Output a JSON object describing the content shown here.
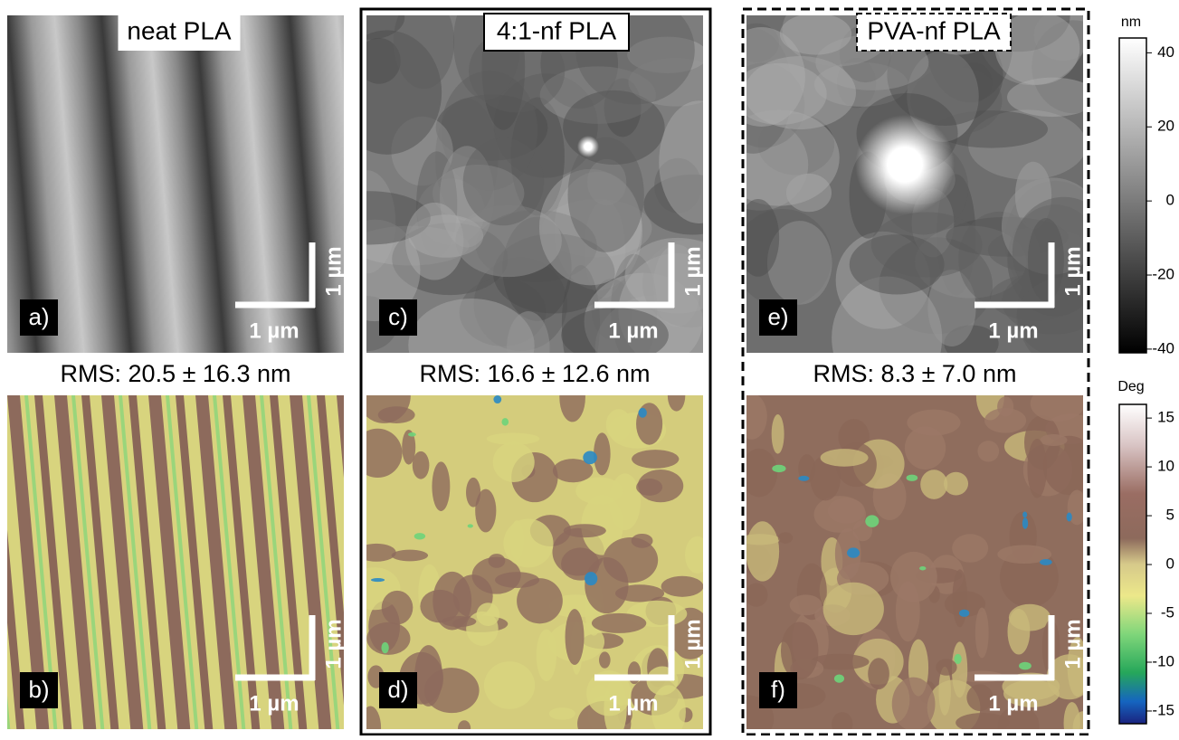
{
  "panels": [
    {
      "title": "neat PLA",
      "rms": "RMS: 20.5 ± 16.3 nm",
      "height": {
        "label": "a)",
        "scale_x": "1 µm",
        "scale_y": "1 µm"
      },
      "phase": {
        "label": "b)",
        "scale_x": "1 µm",
        "scale_y": "1 µm"
      }
    },
    {
      "title": "4:1-nf PLA",
      "rms": "RMS: 16.6 ± 12.6 nm",
      "height": {
        "label": "c)",
        "scale_x": "1 µm",
        "scale_y": "1 µm"
      },
      "phase": {
        "label": "d)",
        "scale_x": "1 µm",
        "scale_y": "1 µm"
      }
    },
    {
      "title": "PVA-nf PLA",
      "rms": "RMS: 8.3 ± 7.0 nm",
      "height": {
        "label": "e)",
        "scale_x": "1 µm",
        "scale_y": "1 µm"
      },
      "phase": {
        "label": "f)",
        "scale_x": "1 µm",
        "scale_y": "1 µm"
      }
    }
  ],
  "colorbars": [
    {
      "unit": "nm",
      "range": [
        -41,
        44
      ],
      "ticks": [
        40,
        20,
        0,
        -20,
        -40
      ]
    },
    {
      "unit": "Deg",
      "range": [
        -16.3,
        16.4
      ],
      "ticks": [
        15,
        10,
        5,
        0,
        -5,
        -10,
        -15
      ]
    }
  ]
}
